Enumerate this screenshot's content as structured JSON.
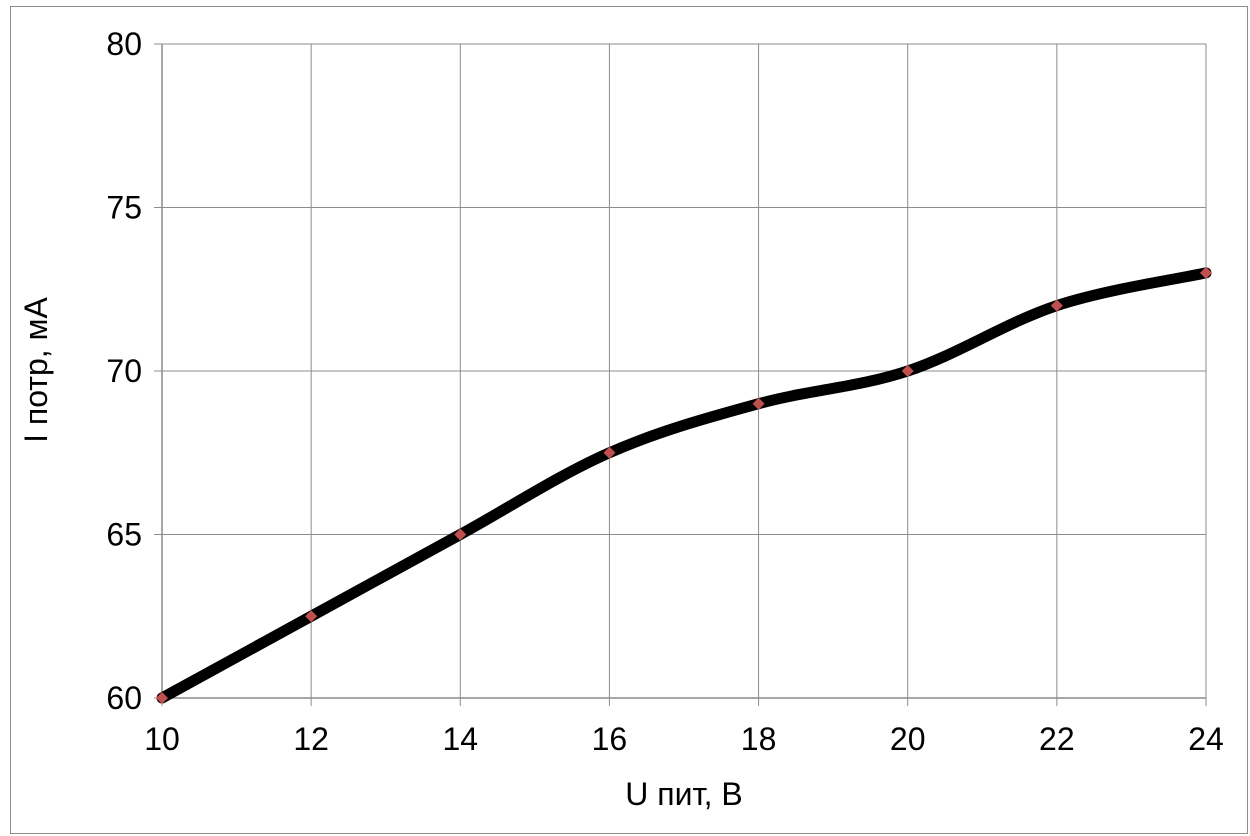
{
  "chart_data": {
    "type": "line",
    "title": "",
    "xlabel": "U пит, В",
    "ylabel": "I потр, мА",
    "xlim": [
      10,
      24
    ],
    "ylim": [
      60,
      80
    ],
    "x_ticks": [
      "10",
      "12",
      "14",
      "16",
      "18",
      "20",
      "22",
      "24"
    ],
    "y_ticks": [
      "60",
      "65",
      "70",
      "75",
      "80"
    ],
    "grid": true,
    "legend": "none",
    "series": [
      {
        "x": [
          10,
          12,
          14,
          16,
          18,
          20,
          22,
          24
        ],
        "y": [
          60,
          62.5,
          65,
          67.5,
          69,
          70,
          72,
          73
        ],
        "line_color": "#000000",
        "marker_color": "#c0504d",
        "marker": "diamond",
        "smooth": true
      }
    ]
  }
}
